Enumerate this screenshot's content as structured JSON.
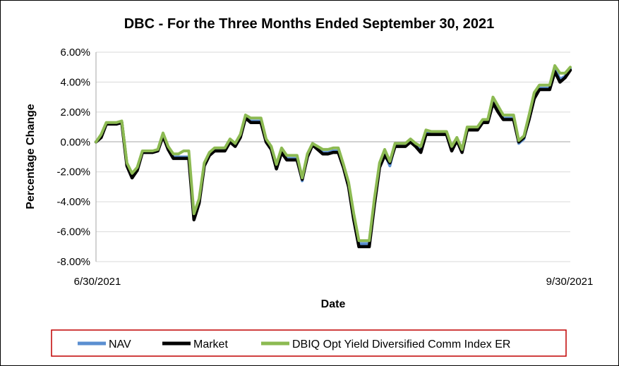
{
  "chart_data": {
    "type": "line",
    "title": "DBC - For the Three Months Ended September 30, 2021",
    "xlabel": "Date",
    "ylabel": "Percentage Change",
    "ylim": [
      -8,
      6
    ],
    "yticks": [
      "6.00%",
      "4.00%",
      "2.00%",
      "0.00%",
      "-2.00%",
      "-4.00%",
      "-6.00%",
      "-8.00%"
    ],
    "ytick_values": [
      6,
      4,
      2,
      0,
      -2,
      -4,
      -6,
      -8
    ],
    "xtick_labels": [
      "6/30/2021",
      "9/30/2021"
    ],
    "grid": "horizontal",
    "legend_position": "bottom",
    "colors": {
      "NAV": "#5b8fd1",
      "Market": "#000000",
      "Index": "#8cba52",
      "legend_border": "#c00000",
      "grid": "#d9d9d9"
    },
    "series": [
      {
        "name": "NAV",
        "values": [
          0,
          0.4,
          1.2,
          1.2,
          1.2,
          1.3,
          -1.5,
          -2.3,
          -1.8,
          -0.7,
          -0.7,
          -0.7,
          -0.6,
          0.5,
          -0.4,
          -1.0,
          -1.0,
          -1.0,
          -1.0,
          -5.0,
          -4.0,
          -1.5,
          -0.8,
          -0.5,
          -0.5,
          -0.5,
          0.1,
          -0.2,
          0.4,
          1.7,
          1.4,
          1.4,
          1.4,
          0.1,
          -0.4,
          -1.6,
          -0.6,
          -1.1,
          -1.1,
          -1.1,
          -2.6,
          -0.9,
          -0.2,
          -0.4,
          -0.7,
          -0.7,
          -0.6,
          -0.6,
          -1.6,
          -2.8,
          -5.0,
          -6.8,
          -6.8,
          -6.8,
          -4.0,
          -1.6,
          -0.8,
          -1.6,
          -0.2,
          -0.2,
          -0.2,
          0.1,
          -0.2,
          -0.5,
          0.6,
          0.6,
          0.6,
          0.6,
          0.6,
          -0.4,
          0.2,
          -0.6,
          0.9,
          0.9,
          0.9,
          1.3,
          1.3,
          2.8,
          2.2,
          1.6,
          1.6,
          1.6,
          -0.1,
          0.2,
          1.6,
          3.0,
          3.6,
          3.6,
          3.6,
          4.9,
          4.2,
          4.4,
          4.9
        ]
      },
      {
        "name": "Market",
        "values": [
          0,
          0.3,
          1.2,
          1.2,
          1.2,
          1.3,
          -1.6,
          -2.4,
          -1.9,
          -0.7,
          -0.7,
          -0.7,
          -0.6,
          0.4,
          -0.5,
          -1.1,
          -1.1,
          -1.1,
          -1.1,
          -5.2,
          -4.1,
          -1.6,
          -0.9,
          -0.6,
          -0.6,
          -0.6,
          0.0,
          -0.3,
          0.3,
          1.6,
          1.3,
          1.3,
          1.3,
          0.0,
          -0.5,
          -1.8,
          -0.7,
          -1.2,
          -1.2,
          -1.2,
          -2.5,
          -1.0,
          -0.2,
          -0.5,
          -0.8,
          -0.8,
          -0.7,
          -0.7,
          -1.7,
          -3.0,
          -5.2,
          -7.0,
          -7.0,
          -7.0,
          -4.2,
          -1.7,
          -0.9,
          -1.4,
          -0.3,
          -0.3,
          -0.3,
          0.0,
          -0.3,
          -0.7,
          0.5,
          0.5,
          0.5,
          0.5,
          0.5,
          -0.6,
          0.1,
          -0.7,
          0.8,
          0.8,
          0.8,
          1.3,
          1.3,
          2.6,
          2.0,
          1.5,
          1.5,
          1.5,
          0.0,
          0.3,
          1.5,
          2.9,
          3.5,
          3.5,
          3.5,
          4.7,
          4.0,
          4.3,
          4.8
        ]
      },
      {
        "name": "DBIQ Opt Yield Diversified Comm Index ER",
        "values": [
          0,
          0.5,
          1.3,
          1.3,
          1.3,
          1.4,
          -1.4,
          -2.1,
          -1.7,
          -0.6,
          -0.6,
          -0.6,
          -0.5,
          0.6,
          -0.3,
          -0.8,
          -0.8,
          -0.6,
          -0.6,
          -4.8,
          -3.8,
          -1.4,
          -0.7,
          -0.4,
          -0.4,
          -0.4,
          0.2,
          -0.1,
          0.5,
          1.8,
          1.6,
          1.6,
          1.6,
          0.2,
          -0.3,
          -1.5,
          -0.4,
          -0.9,
          -0.9,
          -0.9,
          -2.4,
          -0.8,
          -0.1,
          -0.3,
          -0.5,
          -0.5,
          -0.4,
          -0.4,
          -1.5,
          -2.7,
          -4.8,
          -6.6,
          -6.6,
          -6.6,
          -3.8,
          -1.4,
          -0.5,
          -1.3,
          -0.1,
          -0.1,
          -0.1,
          0.2,
          -0.1,
          -0.3,
          0.8,
          0.7,
          0.7,
          0.7,
          0.7,
          -0.3,
          0.3,
          -0.5,
          1.0,
          1.0,
          1.0,
          1.5,
          1.5,
          3.0,
          2.4,
          1.8,
          1.8,
          1.8,
          0.1,
          0.4,
          1.8,
          3.3,
          3.8,
          3.8,
          3.8,
          5.1,
          4.6,
          4.6,
          5.0
        ]
      }
    ]
  }
}
